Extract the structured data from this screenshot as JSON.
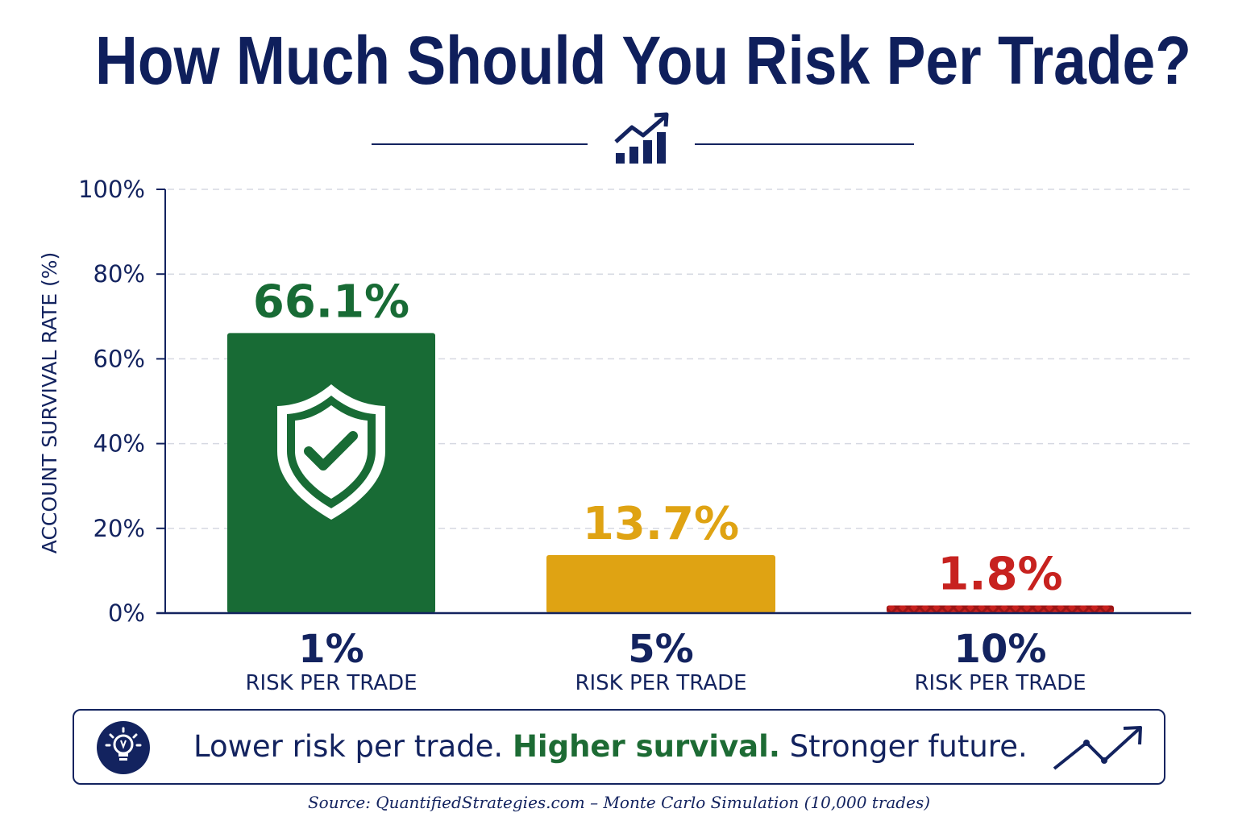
{
  "title": "How Much Should You Risk Per Trade?",
  "callout": {
    "part1": "Lower risk per trade.",
    "highlight": "Higher survival.",
    "part2": "Stronger future."
  },
  "source": "Source: QuantifiedStrategies.com – Monte Carlo Simulation (10,000 trades)",
  "icons": {
    "header": "bar-chart-trend-icon",
    "bar1": "shield-check-icon",
    "callout_left": "lightbulb-icon",
    "callout_right": "trend-up-icon"
  },
  "chart_data": {
    "type": "bar",
    "ylabel": "ACCOUNT SURVIVAL RATE (%)",
    "ylim": [
      0,
      100
    ],
    "yticks": [
      "0%",
      "20%",
      "40%",
      "60%",
      "80%",
      "100%"
    ],
    "grid": true,
    "categories": [
      "1%",
      "5%",
      "10%"
    ],
    "category_sublabel": "RISK PER TRADE",
    "values": [
      66.1,
      13.7,
      1.8
    ],
    "value_labels": [
      "66.1%",
      "13.7%",
      "1.8%"
    ],
    "colors": [
      "#186b35",
      "#dfa313",
      "#c7221f"
    ]
  }
}
